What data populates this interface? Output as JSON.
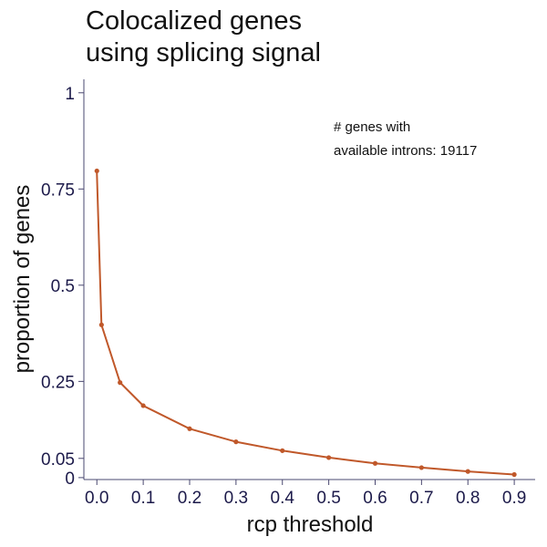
{
  "chart_data": {
    "type": "line",
    "title_lines": [
      "Colocalized genes",
      "using splicing signal"
    ],
    "xlabel": "rcp threshold",
    "ylabel": "proportion of genes",
    "xlim": [
      -0.028,
      0.945
    ],
    "ylim": [
      -0.005,
      1.035
    ],
    "x_ticks": [
      0.0,
      0.1,
      0.2,
      0.3,
      0.4,
      0.5,
      0.6,
      0.7,
      0.8,
      0.9
    ],
    "x_tick_labels": [
      "0.0",
      "0.1",
      "0.2",
      "0.3",
      "0.4",
      "0.5",
      "0.6",
      "0.7",
      "0.8",
      "0.9"
    ],
    "y_ticks": [
      0,
      0.05,
      0.25,
      0.5,
      0.75,
      1
    ],
    "y_tick_labels": [
      "0",
      "0.05",
      "0.25",
      "0.5",
      "0.75",
      "1"
    ],
    "annotation_lines": [
      "# genes with",
      "available introns: 19117"
    ],
    "grid": false,
    "series": [
      {
        "color": "#c0582a",
        "x": [
          0.0,
          0.01,
          0.05,
          0.1,
          0.2,
          0.3,
          0.4,
          0.5,
          0.6,
          0.7,
          0.8,
          0.9
        ],
        "y": [
          0.797,
          0.397,
          0.247,
          0.187,
          0.127,
          0.093,
          0.07,
          0.052,
          0.037,
          0.026,
          0.016,
          0.008
        ]
      }
    ]
  }
}
